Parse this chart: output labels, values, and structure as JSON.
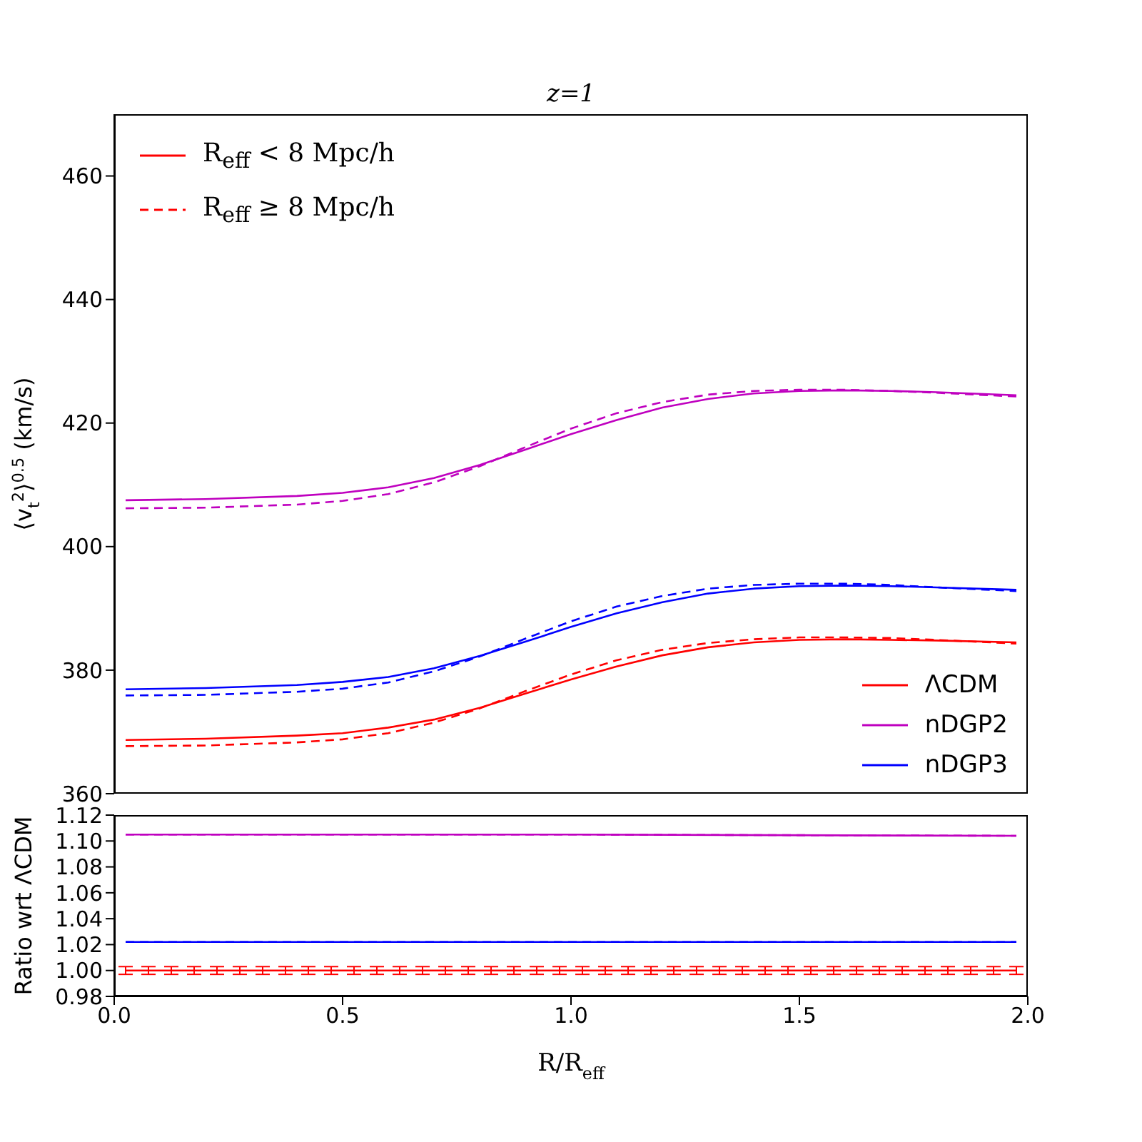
{
  "chart_data": [
    {
      "type": "line",
      "title": "z=1",
      "ylabel": "⟨v$_{t}$$^{2}$⟩$^{0.5}$ (km/s)",
      "x": [
        0.025,
        0.2,
        0.4,
        0.5,
        0.6,
        0.7,
        0.8,
        0.9,
        1.0,
        1.1,
        1.2,
        1.3,
        1.4,
        1.5,
        1.6,
        1.7,
        1.8,
        1.975
      ],
      "xlim": [
        0,
        2
      ],
      "ylim": [
        360,
        470
      ],
      "yticks": [
        360,
        380,
        400,
        420,
        440,
        460
      ],
      "tick_labels": "y",
      "legend": "bottom right",
      "annotations": [
        "R$_{eff}$ < 8 Mpc/h",
        "R$_{eff}$ ≥ 8 Mpc/h"
      ],
      "series": [
        {
          "name": "ΛCDM",
          "color": "#ff0000",
          "line_style": "solid",
          "values": [
            368.7,
            368.9,
            369.4,
            369.8,
            370.7,
            372.0,
            373.9,
            376.2,
            378.5,
            380.6,
            382.4,
            383.7,
            384.5,
            384.9,
            385.0,
            384.9,
            384.8,
            384.5
          ]
        },
        {
          "color": "#ff0000",
          "line_style": "dashed",
          "values": [
            367.7,
            367.8,
            368.3,
            368.8,
            369.8,
            371.5,
            373.8,
            376.6,
            379.3,
            381.6,
            383.3,
            384.4,
            385.0,
            385.3,
            385.3,
            385.2,
            384.9,
            384.3
          ]
        },
        {
          "name": "nDGP2",
          "color": "#bf00bf",
          "line_style": "solid",
          "values": [
            407.5,
            407.7,
            408.2,
            408.7,
            409.6,
            411.1,
            413.2,
            415.7,
            418.2,
            420.5,
            422.5,
            423.9,
            424.8,
            425.2,
            425.3,
            425.2,
            425.0,
            424.5
          ]
        },
        {
          "color": "#bf00bf",
          "line_style": "dashed",
          "values": [
            406.2,
            406.3,
            406.8,
            407.4,
            408.5,
            410.4,
            413.0,
            416.1,
            419.1,
            421.6,
            423.4,
            424.6,
            425.2,
            425.4,
            425.4,
            425.2,
            424.9,
            424.3
          ]
        },
        {
          "name": "nDGP3",
          "color": "#0000ff",
          "line_style": "solid",
          "values": [
            376.9,
            377.1,
            377.6,
            378.1,
            378.9,
            380.3,
            382.3,
            384.6,
            387.0,
            389.2,
            391.0,
            392.4,
            393.2,
            393.6,
            393.7,
            393.6,
            393.4,
            393.0
          ]
        },
        {
          "color": "#0000ff",
          "line_style": "dashed",
          "values": [
            375.9,
            376.0,
            376.5,
            377.0,
            378.0,
            379.8,
            382.2,
            385.1,
            387.9,
            390.3,
            392.0,
            393.2,
            393.8,
            394.0,
            394.0,
            393.8,
            393.4,
            392.8
          ]
        }
      ]
    },
    {
      "type": "line",
      "xlabel": "R/R$_{eff}$",
      "ylabel": "Ratio wrt ΛCDM",
      "x": [
        0.025,
        1.0,
        1.975
      ],
      "xlim": [
        0,
        2
      ],
      "xticks": [
        {
          "value": 0,
          "label": "0.0"
        },
        {
          "value": 0.5,
          "label": "0.5"
        },
        {
          "value": 1,
          "label": "1.0"
        },
        {
          "value": 1.5,
          "label": "1.5"
        },
        {
          "value": 2,
          "label": "2.0"
        }
      ],
      "ylim": [
        0.98,
        1.12
      ],
      "yticks": [
        {
          "value": 0.98,
          "label": "0.98"
        },
        {
          "value": 1.0,
          "label": "1.00"
        },
        {
          "value": 1.02,
          "label": "1.02"
        },
        {
          "value": 1.04,
          "label": "1.04"
        },
        {
          "value": 1.06,
          "label": "1.06"
        },
        {
          "value": 1.08,
          "label": "1.08"
        },
        {
          "value": 1.1,
          "label": "1.10"
        },
        {
          "value": 1.12,
          "label": "1.12"
        }
      ],
      "series": [
        {
          "color": "#ff0000",
          "line_style": "solid",
          "x": [
            0.025,
            0.075,
            0.125,
            0.175,
            0.225,
            0.275,
            0.325,
            0.375,
            0.425,
            0.475,
            0.525,
            0.575,
            0.625,
            0.675,
            0.725,
            0.775,
            0.825,
            0.875,
            0.925,
            0.975,
            1.025,
            1.075,
            1.125,
            1.175,
            1.225,
            1.275,
            1.325,
            1.375,
            1.425,
            1.475,
            1.525,
            1.575,
            1.625,
            1.675,
            1.725,
            1.775,
            1.825,
            1.875,
            1.925,
            1.975
          ],
          "values": [
            1.0,
            1.0,
            1.0,
            1.0,
            1.0,
            1.0,
            1.0,
            1.0,
            1.0,
            1.0,
            1.0,
            1.0,
            1.0,
            1.0,
            1.0,
            1.0,
            1.0,
            1.0,
            1.0,
            1.0,
            1.0,
            1.0,
            1.0,
            1.0,
            1.0,
            1.0,
            1.0,
            1.0,
            1.0,
            1.0,
            1.0,
            1.0,
            1.0,
            1.0,
            1.0,
            1.0,
            1.0,
            1.0,
            1.0,
            1.0
          ],
          "errors": [
            0.003,
            0.003,
            0.003,
            0.003,
            0.003,
            0.003,
            0.003,
            0.003,
            0.003,
            0.003,
            0.003,
            0.003,
            0.003,
            0.003,
            0.003,
            0.003,
            0.003,
            0.003,
            0.003,
            0.003,
            0.003,
            0.003,
            0.003,
            0.003,
            0.003,
            0.003,
            0.003,
            0.003,
            0.003,
            0.003,
            0.003,
            0.003,
            0.003,
            0.003,
            0.003,
            0.003,
            0.003,
            0.003,
            0.003,
            0.003
          ]
        },
        {
          "color": "#bf00bf",
          "line_style": "solid",
          "values": [
            1.105,
            1.105,
            1.104
          ]
        },
        {
          "color": "#bf00bf",
          "line_style": "dashed",
          "values": [
            1.105,
            1.105,
            1.104
          ]
        },
        {
          "color": "#0000ff",
          "line_style": "solid",
          "values": [
            1.022,
            1.022,
            1.022
          ]
        },
        {
          "color": "#0000ff",
          "line_style": "dashed",
          "values": [
            1.022,
            1.022,
            1.022
          ]
        }
      ]
    }
  ]
}
